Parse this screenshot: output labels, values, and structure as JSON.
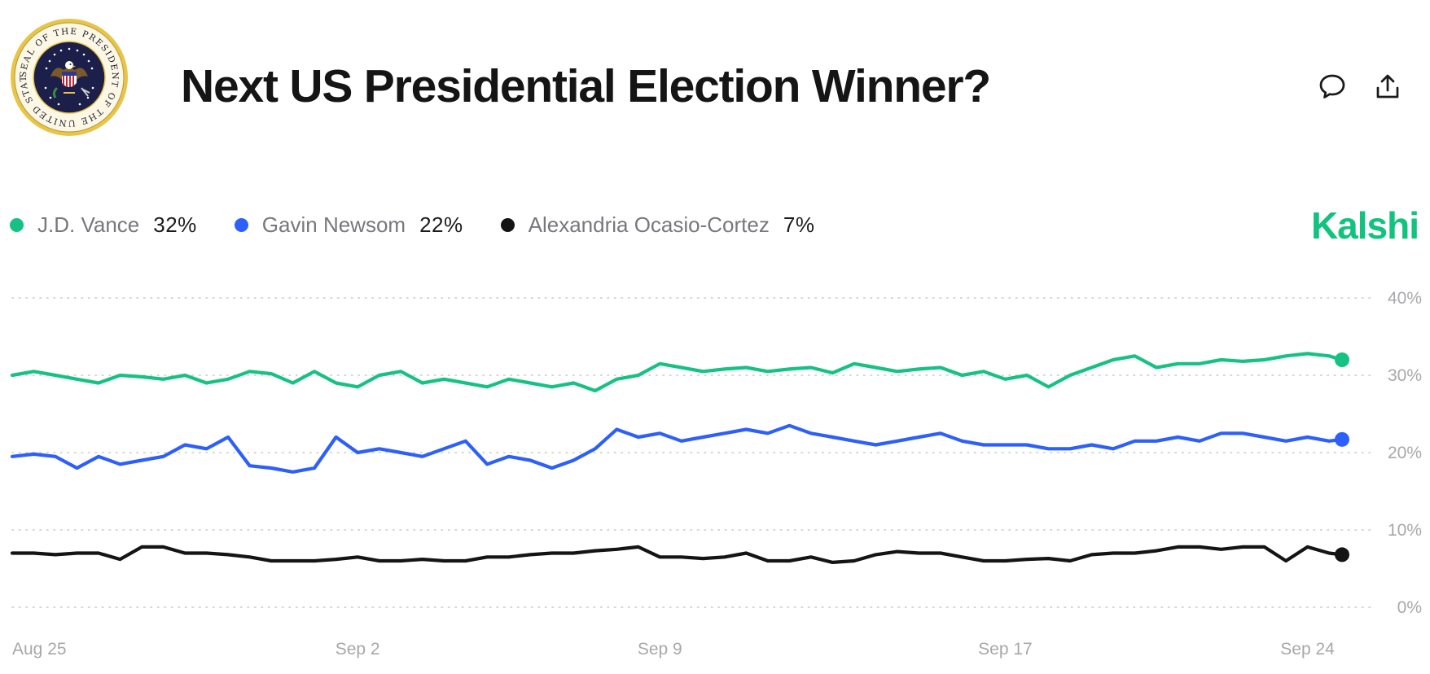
{
  "header": {
    "title": "Next US Presidential Election Winner?",
    "seal_text": "SEAL OF THE PRESIDENT OF THE UNITED STATES"
  },
  "toolbar": {
    "comment_icon": "comment-icon",
    "share_icon": "share-icon"
  },
  "brand": {
    "name": "Kalshi",
    "color": "#12c27f"
  },
  "legend": [
    {
      "name": "J.D. Vance",
      "value": "32%",
      "color": "#16c283"
    },
    {
      "name": "Gavin Newsom",
      "value": "22%",
      "color": "#2d5ffa"
    },
    {
      "name": "Alexandria Ocasio-Cortez",
      "value": "7%",
      "color": "#141414"
    }
  ],
  "chart_data": {
    "type": "line",
    "title": "",
    "xlabel": "",
    "ylabel": "",
    "x_tick_labels": [
      "Aug 25",
      "Sep 2",
      "Sep 9",
      "Sep 17",
      "Sep 24"
    ],
    "x_tick_days": [
      0,
      8,
      15,
      23,
      30
    ],
    "y_ticks": [
      0,
      10,
      20,
      30,
      40
    ],
    "y_tick_labels": [
      "0%",
      "10%",
      "20%",
      "30%",
      "40%"
    ],
    "ylim": [
      0,
      40
    ],
    "xlim": [
      0,
      30.8
    ],
    "grid": true,
    "grid_style": "dotted",
    "legend_placement": "top-left",
    "series": [
      {
        "name": "J.D. Vance",
        "color": "#16c283",
        "x": [
          0,
          0.5,
          1,
          1.5,
          2,
          2.5,
          3,
          3.5,
          4,
          4.5,
          5,
          5.5,
          6,
          6.5,
          7,
          7.5,
          8,
          8.5,
          9,
          9.5,
          10,
          10.5,
          11,
          11.5,
          12,
          12.5,
          13,
          13.5,
          14,
          14.5,
          15,
          15.5,
          16,
          16.5,
          17,
          17.5,
          18,
          18.5,
          19,
          19.5,
          20,
          20.5,
          21,
          21.5,
          22,
          22.5,
          23,
          23.5,
          24,
          24.5,
          25,
          25.5,
          26,
          26.5,
          27,
          27.5,
          28,
          28.5,
          29,
          29.5,
          30,
          30.5,
          30.8
        ],
        "values": [
          30,
          30.5,
          30,
          29.5,
          29,
          30,
          29.8,
          29.5,
          30,
          29,
          29.5,
          30.5,
          30.2,
          29,
          30.5,
          29,
          28.5,
          30,
          30.5,
          29,
          29.5,
          29,
          28.5,
          29.5,
          29,
          28.5,
          29,
          28,
          29.5,
          30,
          31.5,
          31,
          30.5,
          30.8,
          31,
          30.5,
          30.8,
          31,
          30.3,
          31.5,
          31,
          30.5,
          30.8,
          31,
          30,
          30.5,
          29.5,
          30,
          28.5,
          30,
          31,
          32,
          32.5,
          31,
          31.5,
          31.5,
          32,
          31.8,
          32,
          32.5,
          32.8,
          32.5,
          32
        ]
      },
      {
        "name": "Gavin Newsom",
        "color": "#2d5ffa",
        "x": [
          0,
          0.5,
          1,
          1.5,
          2,
          2.5,
          3,
          3.5,
          4,
          4.5,
          5,
          5.5,
          6,
          6.5,
          7,
          7.5,
          8,
          8.5,
          9,
          9.5,
          10,
          10.5,
          11,
          11.5,
          12,
          12.5,
          13,
          13.5,
          14,
          14.5,
          15,
          15.5,
          16,
          16.5,
          17,
          17.5,
          18,
          18.5,
          19,
          19.5,
          20,
          20.5,
          21,
          21.5,
          22,
          22.5,
          23,
          23.5,
          24,
          24.5,
          25,
          25.5,
          26,
          26.5,
          27,
          27.5,
          28,
          28.5,
          29,
          29.5,
          30,
          30.5,
          30.8
        ],
        "values": [
          19.5,
          19.8,
          19.5,
          18,
          19.5,
          18.5,
          19,
          19.5,
          21,
          20.5,
          22,
          18.3,
          18,
          17.5,
          18,
          22,
          20,
          20.5,
          20,
          19.5,
          20.5,
          21.5,
          18.5,
          19.5,
          19,
          18,
          19,
          20.5,
          23,
          22,
          22.5,
          21.5,
          22,
          22.5,
          23,
          22.5,
          23.5,
          22.5,
          22,
          21.5,
          21,
          21.5,
          22,
          22.5,
          21.5,
          21,
          21,
          21,
          20.5,
          20.5,
          21,
          20.5,
          21.5,
          21.5,
          22,
          21.5,
          22.5,
          22.5,
          22,
          21.5,
          22,
          21.5,
          21.7
        ]
      },
      {
        "name": "Alexandria Ocasio-Cortez",
        "color": "#141414",
        "x": [
          0,
          0.5,
          1,
          1.5,
          2,
          2.5,
          3,
          3.5,
          4,
          4.5,
          5,
          5.5,
          6,
          6.5,
          7,
          7.5,
          8,
          8.5,
          9,
          9.5,
          10,
          10.5,
          11,
          11.5,
          12,
          12.5,
          13,
          13.5,
          14,
          14.5,
          15,
          15.5,
          16,
          16.5,
          17,
          17.5,
          18,
          18.5,
          19,
          19.5,
          20,
          20.5,
          21,
          21.5,
          22,
          22.5,
          23,
          23.5,
          24,
          24.5,
          25,
          25.5,
          26,
          26.5,
          27,
          27.5,
          28,
          28.5,
          29,
          29.5,
          30,
          30.5,
          30.8
        ],
        "values": [
          7,
          7,
          6.8,
          7,
          7,
          6.2,
          7.8,
          7.8,
          7,
          7,
          6.8,
          6.5,
          6,
          6,
          6,
          6.2,
          6.5,
          6,
          6,
          6.2,
          6,
          6,
          6.5,
          6.5,
          6.8,
          7,
          7,
          7.3,
          7.5,
          7.8,
          6.5,
          6.5,
          6.3,
          6.5,
          7,
          6,
          6,
          6.5,
          5.8,
          6,
          6.8,
          7.2,
          7,
          7,
          6.5,
          6,
          6,
          6.2,
          6.3,
          6,
          6.8,
          7,
          7,
          7.3,
          7.8,
          7.8,
          7.5,
          7.8,
          7.8,
          6,
          7.8,
          7,
          6.8
        ]
      }
    ]
  }
}
